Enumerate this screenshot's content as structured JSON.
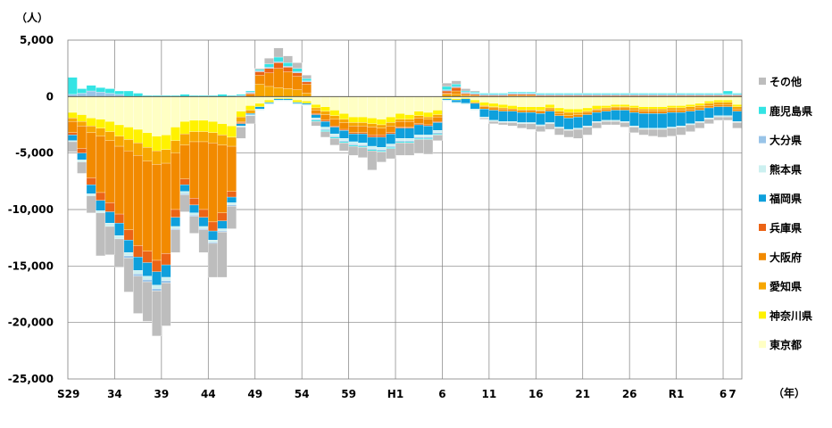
{
  "chart_data": {
    "type": "bar",
    "stacked": true,
    "title": "",
    "ylabel": "（人）",
    "xlabel": "（年）",
    "ylim": [
      -25000,
      5000
    ],
    "yticks": [
      5000,
      0,
      -5000,
      -10000,
      -15000,
      -20000,
      -25000
    ],
    "ytick_labels": [
      "5,000",
      "0",
      "-5,000",
      "-10,000",
      "-15,000",
      "-20,000",
      "-25,000"
    ],
    "xtick_labels": [
      {
        "label": "S29",
        "index": 0
      },
      {
        "label": "34",
        "index": 5
      },
      {
        "label": "39",
        "index": 10
      },
      {
        "label": "44",
        "index": 15
      },
      {
        "label": "49",
        "index": 20
      },
      {
        "label": "54",
        "index": 25
      },
      {
        "label": "59",
        "index": 30
      },
      {
        "label": "H1",
        "index": 35
      },
      {
        "label": "6",
        "index": 40
      },
      {
        "label": "11",
        "index": 45
      },
      {
        "label": "16",
        "index": 50
      },
      {
        "label": "21",
        "index": 55
      },
      {
        "label": "26",
        "index": 60
      },
      {
        "label": "R1",
        "index": 65
      },
      {
        "label": "6",
        "index": 70
      },
      {
        "label": "7",
        "index": 71
      }
    ],
    "years": [
      "S29",
      "S30",
      "S31",
      "S32",
      "S33",
      "S34",
      "S35",
      "S36",
      "S37",
      "S38",
      "S39",
      "S40",
      "S41",
      "S42",
      "S43",
      "S44",
      "S45",
      "S46",
      "S47",
      "S48",
      "S49",
      "S50",
      "S51",
      "S52",
      "S53",
      "S54",
      "S55",
      "S56",
      "S57",
      "S58",
      "S59",
      "S60",
      "S61",
      "S62",
      "S63",
      "H1",
      "H2",
      "H3",
      "H4",
      "H5",
      "H6",
      "H7",
      "H8",
      "H9",
      "H10",
      "H11",
      "H12",
      "H13",
      "H14",
      "H15",
      "H16",
      "H17",
      "H18",
      "H19",
      "H20",
      "H21",
      "H22",
      "H23",
      "H24",
      "H25",
      "H26",
      "H27",
      "H28",
      "H29",
      "H30",
      "R1",
      "R2",
      "R3",
      "R4",
      "R5",
      "R6",
      "R7"
    ],
    "legend_position": "right",
    "legend_order": [
      "その他",
      "鹿児島県",
      "大分県",
      "熊本県",
      "福岡県",
      "兵庫県",
      "大阪府",
      "愛知県",
      "神奈川県",
      "東京都"
    ],
    "series": [
      {
        "name": "東京都",
        "color": "#FFFFC4",
        "values": [
          -1400,
          -1600,
          -1900,
          -2000,
          -2200,
          -2500,
          -2700,
          -2900,
          -3200,
          -3500,
          -3400,
          -2700,
          -2200,
          -2100,
          -2100,
          -2200,
          -2400,
          -2600,
          -1300,
          -800,
          -600,
          -300,
          -100,
          -100,
          -300,
          -400,
          -700,
          -900,
          -1200,
          -1500,
          -1800,
          -1800,
          -1900,
          -2000,
          -1800,
          -1500,
          -1600,
          -1300,
          -1400,
          -1200,
          -100,
          -200,
          -100,
          -300,
          -500,
          -600,
          -700,
          -800,
          -900,
          -900,
          -900,
          -700,
          -1000,
          -1100,
          -1100,
          -1000,
          -800,
          -800,
          -700,
          -700,
          -800,
          -900,
          -900,
          -900,
          -800,
          -800,
          -700,
          -600,
          -400,
          -300,
          -300,
          -700
        ]
      },
      {
        "name": "神奈川県",
        "color": "#FFF200",
        "values": [
          -500,
          -600,
          -700,
          -800,
          -900,
          -1000,
          -1100,
          -1200,
          -1300,
          -1300,
          -1300,
          -1200,
          -1100,
          -1000,
          -1000,
          -1000,
          -1000,
          -1000,
          -500,
          -400,
          -300,
          -200,
          -100,
          -100,
          -200,
          -200,
          -300,
          -400,
          -500,
          -500,
          -500,
          -500,
          -500,
          -500,
          -500,
          -500,
          -400,
          -400,
          -400,
          -400,
          -100,
          -100,
          -100,
          -200,
          -300,
          -300,
          -300,
          -300,
          -300,
          -300,
          -300,
          -300,
          -300,
          -300,
          -300,
          -300,
          -300,
          -200,
          -200,
          -200,
          -200,
          -200,
          -200,
          -200,
          -200,
          -200,
          -200,
          -200,
          -200,
          -200,
          -200,
          -200
        ]
      },
      {
        "name": "愛知県",
        "color": "#F7A600",
        "values": [
          -300,
          -400,
          -600,
          -700,
          -800,
          -900,
          -1000,
          -1100,
          -1200,
          -1200,
          -1200,
          -1100,
          -1000,
          -900,
          -900,
          -900,
          -900,
          -800,
          -400,
          -300,
          1100,
          900,
          800,
          700,
          600,
          300,
          -200,
          -300,
          -300,
          -300,
          -300,
          -300,
          -300,
          -300,
          -300,
          -200,
          -200,
          -200,
          -200,
          -200,
          200,
          200,
          100,
          100,
          -100,
          -100,
          -100,
          100,
          100,
          100,
          -100,
          -100,
          -200,
          -300,
          -200,
          -100,
          -100,
          -100,
          -100,
          -100,
          -200,
          -200,
          -200,
          -200,
          -200,
          -200,
          -200,
          -200,
          -200,
          -200,
          -200,
          -200
        ]
      },
      {
        "name": "大阪府",
        "color": "#F28A00",
        "values": [
          -1000,
          -2000,
          -4000,
          -5000,
          -5500,
          -6000,
          -7000,
          -8000,
          -8000,
          -8500,
          -8000,
          -5000,
          -3000,
          -5000,
          -6000,
          -7000,
          -6000,
          -4000,
          -100,
          200,
          800,
          1200,
          1700,
          1500,
          1200,
          800,
          -300,
          -500,
          -600,
          -600,
          -600,
          -600,
          -700,
          -600,
          -600,
          -500,
          -500,
          -500,
          -500,
          -400,
          100,
          300,
          100,
          -100,
          -200,
          -200,
          -200,
          -200,
          -200,
          -200,
          -200,
          -200,
          -200,
          -200,
          -200,
          -200,
          -200,
          -200,
          -200,
          -200,
          -200,
          -200,
          -200,
          -200,
          -200,
          -200,
          -200,
          -200,
          -200,
          -200,
          -200,
          -200
        ]
      },
      {
        "name": "兵庫県",
        "color": "#EC6416",
        "values": [
          -200,
          -400,
          -600,
          -700,
          -800,
          -800,
          -900,
          -1000,
          -1000,
          -1000,
          -1000,
          -700,
          -500,
          -600,
          -700,
          -800,
          -700,
          -500,
          -100,
          100,
          300,
          400,
          500,
          400,
          300,
          200,
          -100,
          -100,
          -100,
          -100,
          -100,
          -100,
          -200,
          -200,
          -100,
          -100,
          -100,
          -100,
          -100,
          -100,
          200,
          300,
          100,
          100,
          100,
          100,
          100,
          100,
          100,
          100,
          100,
          100,
          100,
          100,
          100,
          100,
          100,
          100,
          100,
          100,
          100,
          100,
          100,
          100,
          100,
          100,
          100,
          100,
          100,
          100,
          100,
          100
        ]
      },
      {
        "name": "福岡県",
        "color": "#0EA0DC",
        "values": [
          -500,
          -600,
          -800,
          -900,
          -1000,
          -1100,
          -1100,
          -1200,
          -1200,
          -1200,
          -1100,
          -800,
          -600,
          -700,
          -800,
          -800,
          -700,
          -500,
          -200,
          -100,
          -200,
          -100,
          -100,
          -100,
          -100,
          -100,
          -300,
          -500,
          -600,
          -700,
          -700,
          -800,
          -800,
          -900,
          -900,
          -900,
          -900,
          -900,
          -800,
          -700,
          -100,
          -200,
          -400,
          -500,
          -700,
          -900,
          -900,
          -900,
          -900,
          -900,
          -1000,
          -1000,
          -1000,
          -1000,
          -1000,
          -1000,
          -800,
          -800,
          -900,
          -1000,
          -1200,
          -1300,
          -1300,
          -1300,
          -1300,
          -1200,
          -1100,
          -1000,
          -900,
          -800,
          -800,
          -900
        ]
      },
      {
        "name": "熊本県",
        "color": "#CCF0F0",
        "values": [
          -100,
          -200,
          -200,
          -200,
          -300,
          -300,
          -300,
          -300,
          -300,
          -300,
          -300,
          -200,
          -200,
          -200,
          -200,
          -200,
          -200,
          -200,
          -100,
          -100,
          -100,
          -100,
          -100,
          -100,
          -100,
          -100,
          -100,
          -200,
          -200,
          -200,
          -200,
          -200,
          -200,
          -200,
          -200,
          -200,
          -200,
          -200,
          -200,
          -200,
          -100,
          -100,
          -100,
          -100,
          -100,
          -100,
          -100,
          -100,
          -100,
          -100,
          -100,
          -100,
          -100,
          -100,
          -100,
          -100,
          -100,
          -100,
          -100,
          -100,
          -100,
          -100,
          -100,
          -100,
          -100,
          -100,
          -100,
          -100,
          -100,
          -100,
          -100,
          -100
        ]
      },
      {
        "name": "大分県",
        "color": "#99C4E8",
        "values": [
          200,
          300,
          500,
          400,
          300,
          200,
          -200,
          -200,
          -200,
          -200,
          -200,
          -100,
          -100,
          -100,
          -100,
          -100,
          -100,
          -100,
          100,
          100,
          100,
          100,
          100,
          100,
          100,
          100,
          -100,
          -100,
          -100,
          -100,
          -100,
          -100,
          -100,
          -100,
          -100,
          -100,
          -100,
          -100,
          -100,
          -100,
          100,
          100,
          100,
          100,
          100,
          100,
          100,
          100,
          100,
          100,
          100,
          100,
          100,
          100,
          100,
          100,
          100,
          100,
          100,
          100,
          100,
          100,
          100,
          100,
          100,
          100,
          100,
          100,
          100,
          100,
          100,
          100
        ]
      },
      {
        "name": "鹿児島県",
        "color": "#34E4E4",
        "values": [
          1500,
          400,
          500,
          400,
          400,
          300,
          500,
          300,
          100,
          100,
          100,
          100,
          200,
          100,
          100,
          100,
          200,
          100,
          100,
          100,
          100,
          300,
          400,
          300,
          300,
          200,
          -100,
          -100,
          -100,
          -100,
          -100,
          -100,
          -100,
          -100,
          -100,
          -100,
          -100,
          -100,
          -100,
          -100,
          300,
          200,
          100,
          100,
          100,
          100,
          100,
          100,
          100,
          100,
          100,
          100,
          100,
          100,
          100,
          100,
          100,
          100,
          100,
          100,
          100,
          100,
          100,
          100,
          100,
          100,
          100,
          100,
          100,
          100,
          300,
          100
        ]
      },
      {
        "name": "その他",
        "color": "#BDBDBD",
        "values": [
          -900,
          -1000,
          -1500,
          -3800,
          -2500,
          -2500,
          -3000,
          -3300,
          -3500,
          -4000,
          -3800,
          -2000,
          -1500,
          -1500,
          -2000,
          -3000,
          -4000,
          -2000,
          -1000,
          -700,
          100,
          500,
          800,
          600,
          500,
          300,
          -400,
          -500,
          -600,
          -700,
          -800,
          -900,
          -1700,
          -900,
          -900,
          -1100,
          -1100,
          -1200,
          -1300,
          -500,
          300,
          300,
          200,
          100,
          -100,
          -200,
          -200,
          -300,
          -400,
          -500,
          -500,
          -500,
          -600,
          -600,
          -800,
          -700,
          -500,
          -300,
          -300,
          -400,
          -500,
          -500,
          -600,
          -700,
          -700,
          -700,
          -600,
          -500,
          -400,
          -300,
          -300,
          -500
        ]
      }
    ]
  }
}
